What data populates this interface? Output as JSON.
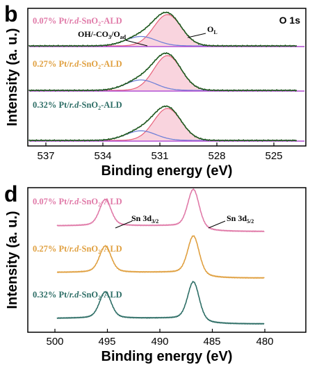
{
  "panels": [
    {
      "letter": "b",
      "core_label": "O 1s",
      "xlabel": "Binding energy (eV)",
      "ylabel": "Intensity (a. u.)",
      "x_ticks": [
        "537",
        "534",
        "531",
        "528",
        "525"
      ],
      "samples": [
        {
          "label": "0.07% Pt/r.d-SnO2-ALD",
          "color": "#e07aa8"
        },
        {
          "label": "0.27% Pt/r.d-SnO2-ALD",
          "color": "#e0a040"
        },
        {
          "label": "0.32% Pt/r.d-SnO2-ALD",
          "color": "#2e6e66"
        }
      ],
      "annotations": {
        "oh": "OH/-CO3/Oad",
        "ol": "OL"
      }
    },
    {
      "letter": "d",
      "xlabel": "Binding energy (eV)",
      "ylabel": "Intensity (a. u.)",
      "x_ticks": [
        "500",
        "495",
        "490",
        "485",
        "480"
      ],
      "samples": [
        {
          "label": "0.07% Pt/r.d-SnO2-ALD",
          "color": "#e07aa8"
        },
        {
          "label": "0.27% Pt/r.d-SnO2-ALD",
          "color": "#e0a040"
        },
        {
          "label": "0.32% Pt/r.d-SnO2-ALD",
          "color": "#2e6e66"
        }
      ],
      "annotations": {
        "sn32": "Sn 3d3/2",
        "sn52": "Sn 3d5/2"
      }
    }
  ],
  "chart_data": [
    {
      "type": "line",
      "title": "O 1s",
      "xlabel": "Binding energy (eV)",
      "ylabel": "Intensity (a. u.)",
      "xlim": [
        538.5,
        523.8
      ],
      "x_ticks": [
        537,
        534,
        531,
        528,
        525
      ],
      "series": [
        {
          "name": "0.07% Pt/r.d-SnO2-ALD",
          "components": {
            "OL_peak_eV": 530.6,
            "OH_CO3_Oad_peak_eV": 532.0
          }
        },
        {
          "name": "0.27% Pt/r.d-SnO2-ALD",
          "components": {
            "OL_peak_eV": 530.6,
            "OH_CO3_Oad_peak_eV": 532.0
          }
        },
        {
          "name": "0.32% Pt/r.d-SnO2-ALD",
          "components": {
            "OL_peak_eV": 530.6,
            "OH_CO3_Oad_peak_eV": 532.0
          }
        }
      ]
    },
    {
      "type": "line",
      "xlabel": "Binding energy (eV)",
      "ylabel": "Intensity (a. u.)",
      "xlim": [
        502.3,
        478.8
      ],
      "x_ticks": [
        500,
        495,
        490,
        485,
        480
      ],
      "series": [
        {
          "name": "0.07% Pt/r.d-SnO2-ALD",
          "peaks_eV": [
            495.2,
            486.8
          ]
        },
        {
          "name": "0.27% Pt/r.d-SnO2-ALD",
          "peaks_eV": [
            495.2,
            486.8
          ]
        },
        {
          "name": "0.32% Pt/r.d-SnO2-ALD",
          "peaks_eV": [
            495.2,
            486.8
          ]
        }
      ]
    }
  ]
}
